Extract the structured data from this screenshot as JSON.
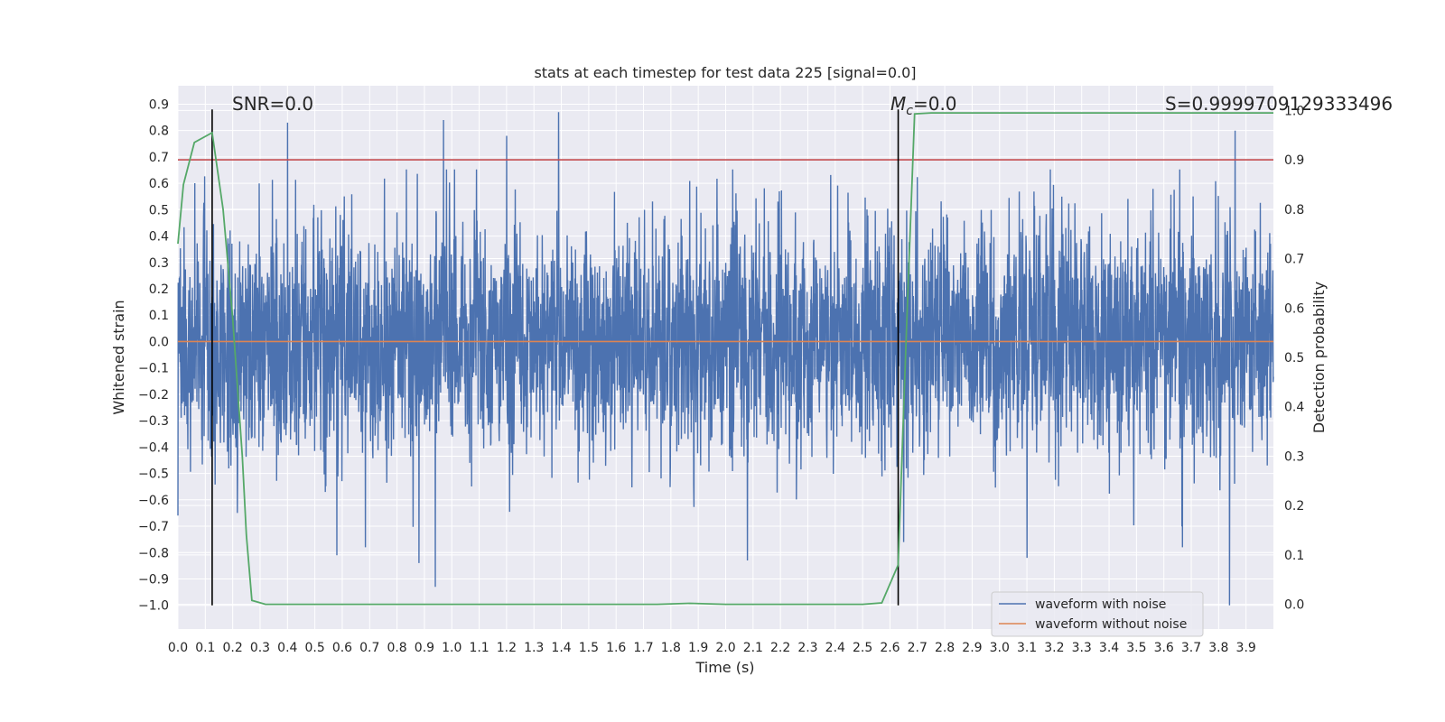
{
  "chart_data": {
    "type": "line",
    "title": "stats at each timestep for test data 225 [signal=0.0]",
    "xlabel": "Time (s)",
    "ylabel": "Whitened strain",
    "y2label": "Detection probability",
    "xlim": [
      0.0,
      4.0
    ],
    "ylim": [
      -1.09,
      0.97
    ],
    "y2lim": [
      -0.05,
      1.05
    ],
    "x_ticks": [
      0.0,
      0.1,
      0.2,
      0.3,
      0.4,
      0.5,
      0.6,
      0.7,
      0.8,
      0.9,
      1.0,
      1.1,
      1.2,
      1.3,
      1.4,
      1.5,
      1.6,
      1.7,
      1.8,
      1.9,
      2.0,
      2.1,
      2.2,
      2.3,
      2.4,
      2.5,
      2.6,
      2.7,
      2.8,
      2.9,
      3.0,
      3.1,
      3.2,
      3.3,
      3.4,
      3.5,
      3.6,
      3.7,
      3.8,
      3.9
    ],
    "y_ticks": [
      0.9,
      0.8,
      0.7,
      0.6,
      0.5,
      0.4,
      0.3,
      0.2,
      0.1,
      0.0,
      -0.1,
      -0.2,
      -0.3,
      -0.4,
      -0.5,
      -0.6,
      -0.7,
      -0.8,
      -0.9,
      -1.0
    ],
    "y2_ticks": [
      1.0,
      0.9,
      0.8,
      0.7,
      0.6,
      0.5,
      0.4,
      0.3,
      0.2,
      0.1,
      0.0
    ],
    "grid": true,
    "legend_position": "bottom-right",
    "series": [
      {
        "name": "waveform with noise",
        "axis": "left",
        "color": "#4c72b0",
        "description_values": {
          "x_range": [
            0.0,
            4.0
          ],
          "y_min": -1.0,
          "y_max": 0.87,
          "typical_amplitude": 0.3
        },
        "spikes": [
          {
            "x": 0.4,
            "y": 0.83
          },
          {
            "x": 0.97,
            "y": 0.84
          },
          {
            "x": 1.39,
            "y": 0.87
          },
          {
            "x": 1.2,
            "y": 0.78
          },
          {
            "x": 0.94,
            "y": -0.93
          },
          {
            "x": 0.88,
            "y": -0.84
          },
          {
            "x": 2.08,
            "y": -0.83
          },
          {
            "x": 3.1,
            "y": -0.82
          },
          {
            "x": 3.84,
            "y": -1.0
          },
          {
            "x": 3.86,
            "y": 0.8
          },
          {
            "x": 2.65,
            "y": -0.76
          },
          {
            "x": 0.58,
            "y": -0.81
          }
        ]
      },
      {
        "name": "waveform without noise",
        "axis": "left",
        "color": "#dd8452",
        "x": [
          0.0,
          4.0
        ],
        "y": [
          0.0,
          0.0
        ]
      },
      {
        "axis": "right",
        "color": "#55a868",
        "x": [
          0.0,
          0.02,
          0.06,
          0.125,
          0.165,
          0.2,
          0.235,
          0.25,
          0.27,
          0.32,
          0.5,
          1.0,
          1.5,
          1.75,
          1.87,
          2.0,
          2.3,
          2.5,
          2.57,
          2.63,
          2.66,
          2.69,
          2.75,
          3.0,
          3.5,
          4.0
        ],
        "y": [
          0.73,
          0.85,
          0.935,
          0.955,
          0.8,
          0.58,
          0.3,
          0.14,
          0.008,
          0.0,
          0.0,
          0.0,
          0.0,
          0.0,
          0.002,
          0.0,
          0.0,
          0.0,
          0.003,
          0.08,
          0.55,
          0.993,
          0.995,
          0.995,
          0.995,
          0.995
        ]
      }
    ],
    "reference_lines": [
      {
        "type": "horizontal",
        "axis": "right",
        "y": 0.9,
        "color": "#c44e52"
      },
      {
        "type": "vertical",
        "x": 0.125,
        "y_from": -1.0,
        "y_to": 0.88,
        "color": "#000000"
      },
      {
        "type": "vertical",
        "x": 2.63,
        "y_from": -1.0,
        "y_to": 0.88,
        "color": "#000000"
      }
    ],
    "annotations": {
      "snr": "SNR=0.0",
      "mc_symbol": "M",
      "mc_subscript": "c",
      "mc_value": "=0.0",
      "s": "S=0.9999709129333496"
    }
  }
}
